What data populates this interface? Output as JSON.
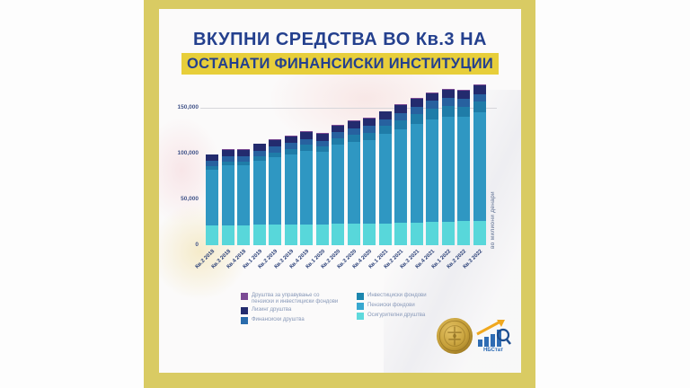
{
  "title": {
    "line1": "ВКУПНИ СРЕДСТВА ВО Кв.3 НА",
    "line2": "ОСТАНАТИ ФИНАНСИСКИ ИНСТИТУЦИИ"
  },
  "colors": {
    "frame": "#d9cb63",
    "title_text": "#24408e",
    "title_highlight": "#e7ce3a"
  },
  "chart_data": {
    "type": "bar",
    "stacked": true,
    "title": "ВКУПНИ СРЕДСТВА ВО Кв.3 НА ОСТАНАТИ ФИНАНСИСКИ ИНСТИТУЦИИ",
    "ylabel": "во милиони денари",
    "categories": [
      "Кв.2 2018",
      "Кв.3 2018",
      "Кв.4 2018",
      "Кв.1 2019",
      "Кв.2 2019",
      "Кв.3 2019",
      "Кв.4 2019",
      "Кв.1 2020",
      "Кв.2 2020",
      "Кв.3 2020",
      "Кв.4 2020",
      "Кв.1 2021",
      "Кв.2 2021",
      "Кв.3 2021",
      "Кв.4 2021",
      "Кв.1 2022",
      "Кв.2 2022",
      "Кв.3 2022"
    ],
    "series": [
      {
        "name": "Осигурителни друштва",
        "color": "#58d7da",
        "values": [
          21500,
          21700,
          22000,
          22200,
          22400,
          22600,
          22800,
          23000,
          23100,
          23300,
          23500,
          23800,
          24100,
          24500,
          25000,
          25500,
          26000,
          26500
        ]
      },
      {
        "name": "Пензиски фондови",
        "color": "#2f97c2",
        "values": [
          60900,
          65180,
          64750,
          69820,
          73400,
          76480,
          80550,
          78850,
          86520,
          89900,
          91670,
          97340,
          102500,
          107870,
          112640,
          115120,
          114000,
          118550
        ]
      },
      {
        "name": "Инвестициски фондови",
        "color": "#1f7ca8",
        "values": [
          4000,
          4300,
          4600,
          5000,
          5400,
          5800,
          6200,
          5800,
          6600,
          7200,
          7800,
          8800,
          9800,
          10600,
          11400,
          11600,
          11000,
          11500
        ]
      },
      {
        "name": "Финансиски друштва",
        "color": "#27619f",
        "values": [
          5500,
          5600,
          5800,
          6000,
          6200,
          6400,
          6600,
          6500,
          6800,
          7000,
          7300,
          7600,
          7900,
          8100,
          8300,
          8400,
          8400,
          8500
        ]
      },
      {
        "name": "Лизинг друштва",
        "color": "#232b6e",
        "values": [
          7000,
          7100,
          7200,
          7300,
          7400,
          7500,
          7600,
          7600,
          7700,
          7800,
          7900,
          8100,
          8300,
          8500,
          8700,
          8900,
          9100,
          9400
        ]
      },
      {
        "name": "Друштва за управување со пензиски и инвестициски фондови",
        "color": "#7b4a94",
        "values": [
          600,
          620,
          650,
          680,
          700,
          720,
          750,
          750,
          780,
          800,
          830,
          860,
          900,
          930,
          960,
          980,
          1000,
          1050
        ]
      }
    ],
    "totals": [
      99500,
      104500,
      105000,
      111000,
      115500,
      119500,
      124500,
      122500,
      131500,
      136000,
      139000,
      146500,
      153500,
      160500,
      167000,
      170500,
      169500,
      175500
    ],
    "ylim": [
      0,
      176000
    ],
    "yticks": [
      0,
      50000,
      100000,
      150000
    ],
    "ytick_labels": [
      "0",
      "50,000",
      "100,000",
      "150,000"
    ],
    "gridline_at": 150000,
    "legend_position": "bottom"
  },
  "legend": {
    "columns": [
      [
        {
          "label": "Друштва за управување со пензиски и инвестициски фондови",
          "color": "#7b4a94"
        },
        {
          "label": "Лизинг друштва",
          "color": "#232b6e"
        },
        {
          "label": "Финансиски друштва",
          "color": "#2a6bab"
        }
      ],
      [
        {
          "label": "Инвестициски фондови",
          "color": "#1b86ae"
        },
        {
          "label": "Пензиски фондови",
          "color": "#38a8d0"
        },
        {
          "label": "Осигурителни друштва",
          "color": "#5fd9dc"
        }
      ]
    ]
  },
  "logo": {
    "caption": "НБСтат"
  }
}
